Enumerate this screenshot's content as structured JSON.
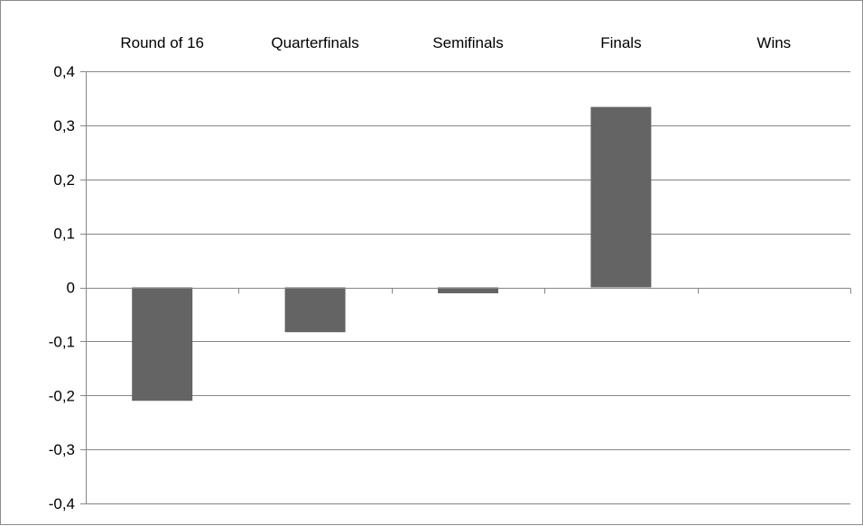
{
  "chart_data": {
    "type": "bar",
    "categories": [
      "Round of 16",
      "Quarterfinals",
      "Semifinals",
      "Finals",
      "Wins"
    ],
    "values": [
      -0.21,
      -0.083,
      -0.011,
      0.334,
      0
    ],
    "title": "",
    "xlabel": "",
    "ylabel": "",
    "ylim": [
      -0.4,
      0.4
    ],
    "yticks": [
      "0,4",
      "0,3",
      "0,2",
      "0,1",
      "0",
      "-0,1",
      "-0,2",
      "-0,3",
      "-0,4"
    ],
    "ytick_values": [
      0.4,
      0.3,
      0.2,
      0.1,
      0,
      -0.1,
      -0.2,
      -0.3,
      -0.4
    ],
    "category_labels_position": "top",
    "grid": true,
    "legend": "none",
    "bar_color": "#646464",
    "grid_color": "#868686"
  }
}
